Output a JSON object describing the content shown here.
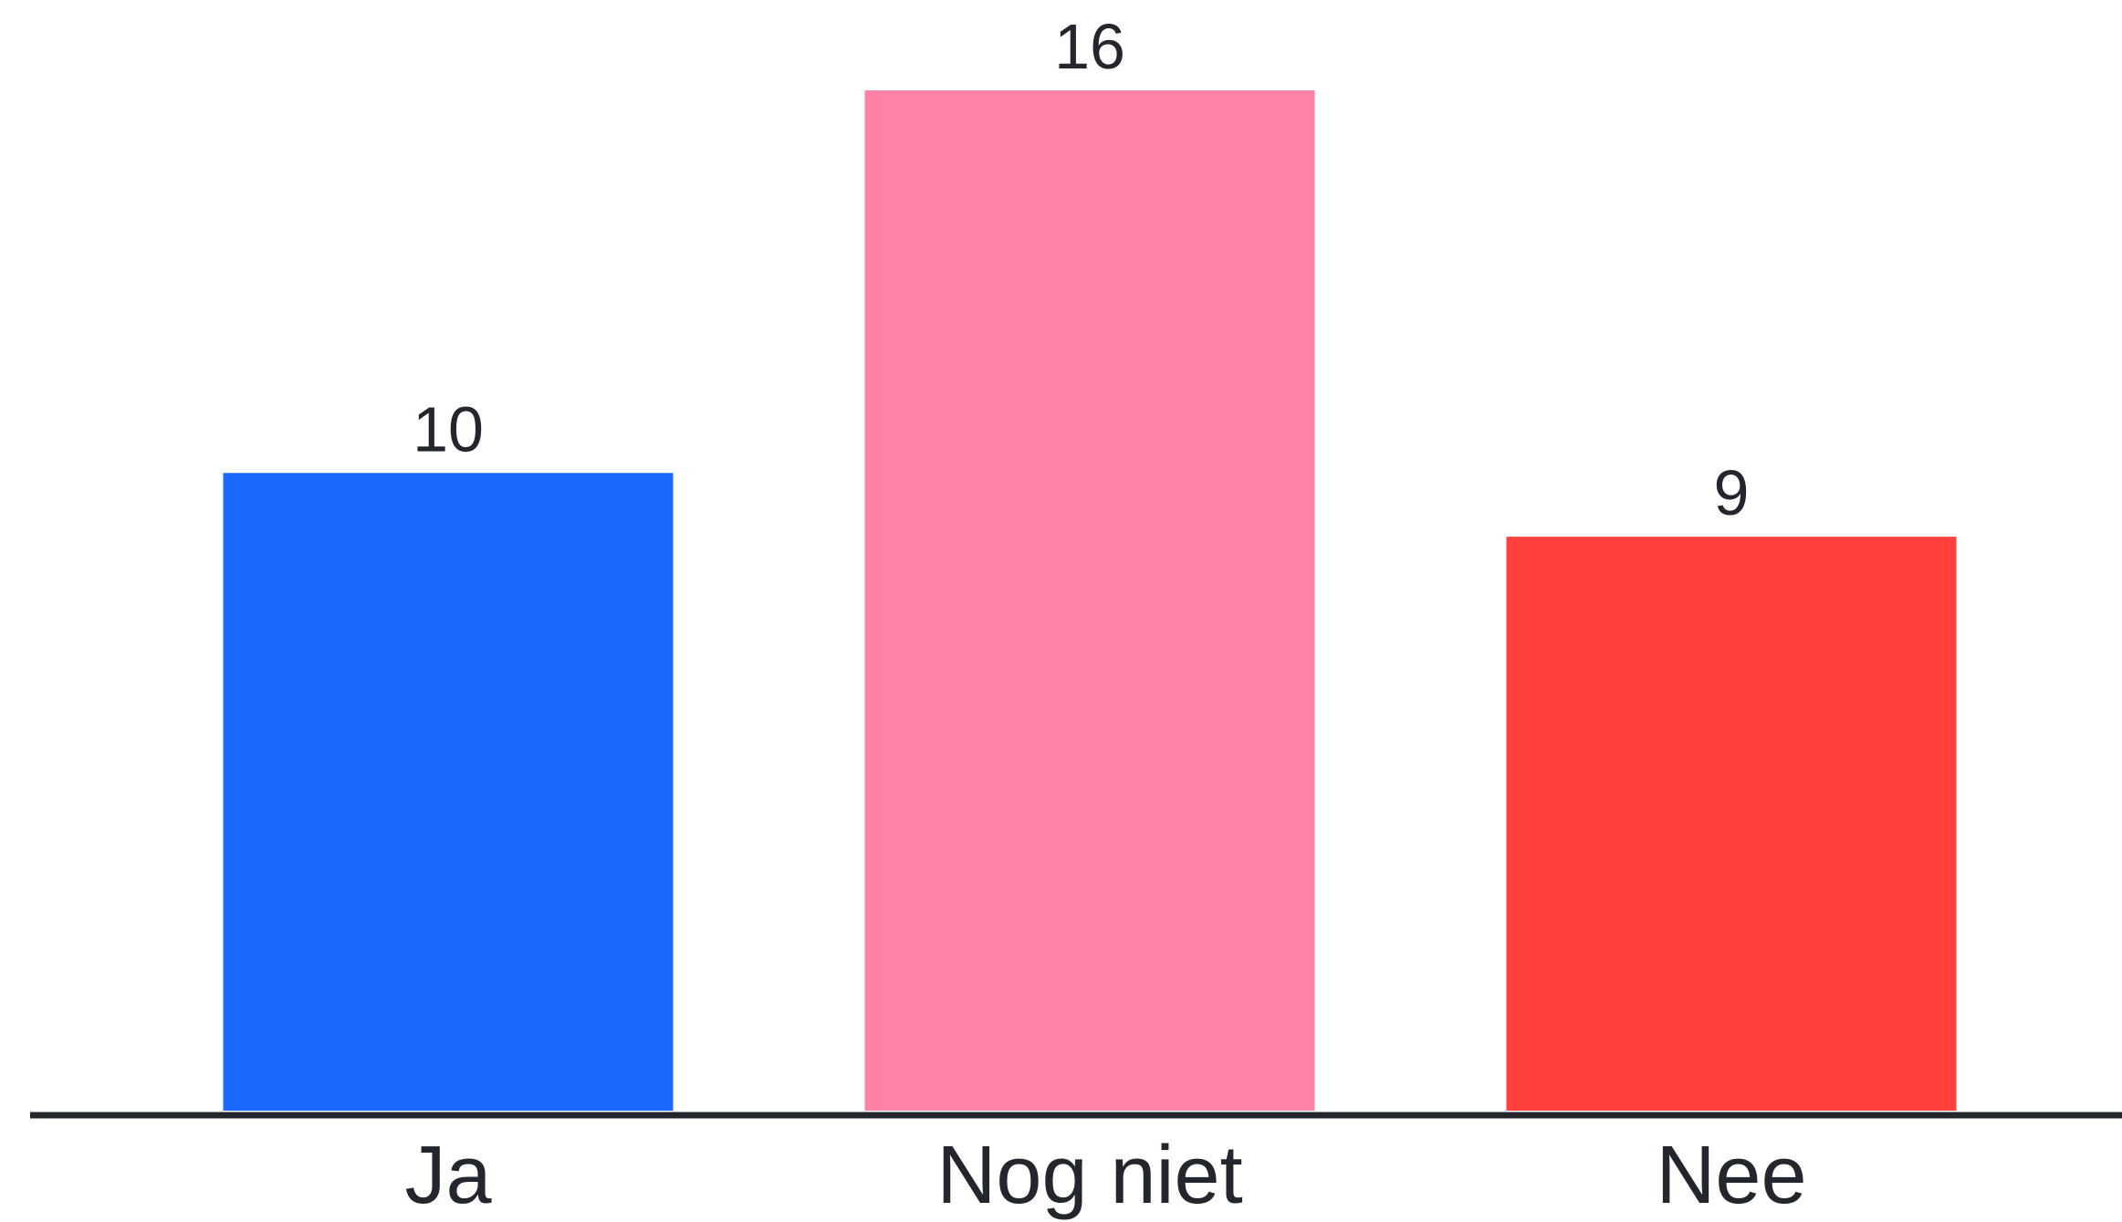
{
  "chart_data": {
    "type": "bar",
    "categories": [
      "Ja",
      "Nog niet",
      "Nee"
    ],
    "values": [
      10,
      16,
      9
    ],
    "colors": [
      "#1B69FF",
      "#FF81A8",
      "#FF403C"
    ],
    "value_labels": [
      "10",
      "16",
      "9"
    ],
    "title": "",
    "xlabel": "",
    "ylabel": "",
    "ylim": [
      0,
      16
    ],
    "grid": false,
    "legend": "none",
    "axis_color": "#23262d"
  }
}
